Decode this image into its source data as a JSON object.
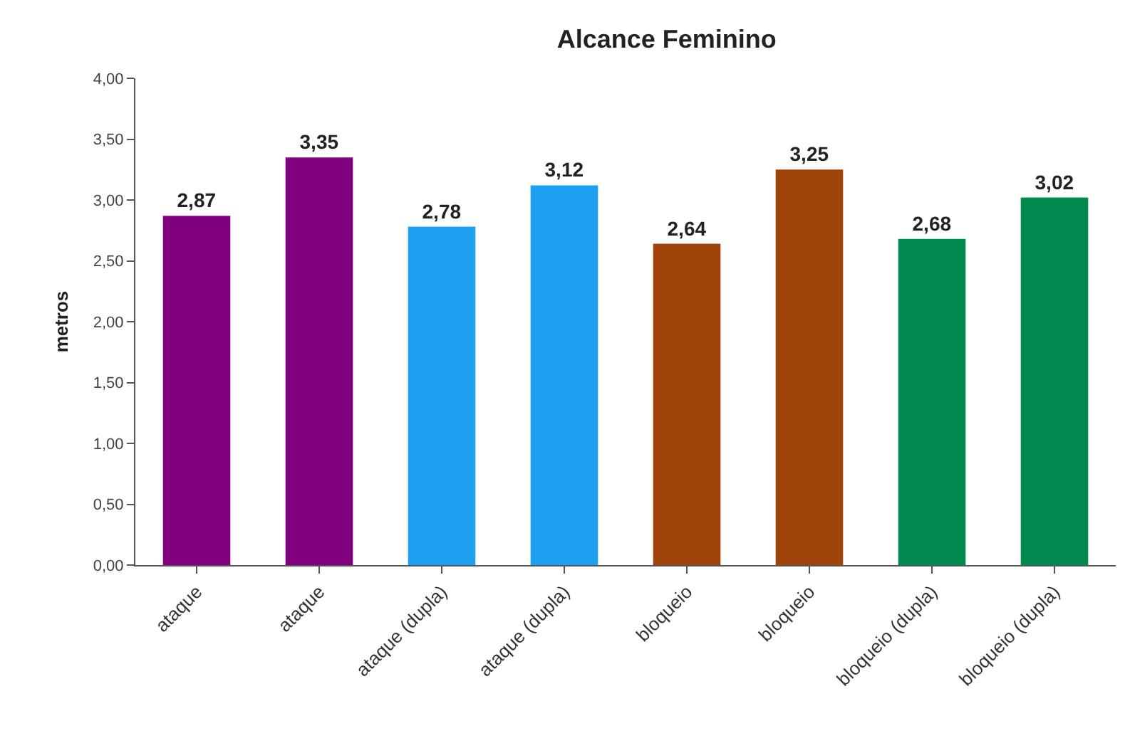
{
  "chart_data": {
    "type": "bar",
    "title": "Alcance Feminino",
    "ylabel": "metros",
    "categories": [
      "ataque",
      "ataque",
      "ataque (dupla)",
      "ataque (dupla)",
      "bloqueio",
      "bloqueio",
      "bloqueio (dupla)",
      "bloqueio (dupla)"
    ],
    "values": [
      2.87,
      3.35,
      2.78,
      3.12,
      2.64,
      3.25,
      2.68,
      3.02
    ],
    "value_labels": [
      "2,87",
      "3,35",
      "2,78",
      "3,12",
      "2,64",
      "3,25",
      "2,68",
      "3,02"
    ],
    "colors": [
      "#800080",
      "#800080",
      "#1ea0f0",
      "#1ea0f0",
      "#a0430a",
      "#a0430a",
      "#008a50",
      "#008a50"
    ],
    "ylim": [
      0,
      4
    ],
    "yticks": [
      {
        "value": 0,
        "label": "0,00"
      },
      {
        "value": 0.5,
        "label": "0,50"
      },
      {
        "value": 1,
        "label": "1,00"
      },
      {
        "value": 1.5,
        "label": "1,50"
      },
      {
        "value": 2,
        "label": "2,00"
      },
      {
        "value": 2.5,
        "label": "2,50"
      },
      {
        "value": 3,
        "label": "3,00"
      },
      {
        "value": 3.5,
        "label": "3,50"
      },
      {
        "value": 4,
        "label": "4,00"
      }
    ],
    "grid": false
  }
}
